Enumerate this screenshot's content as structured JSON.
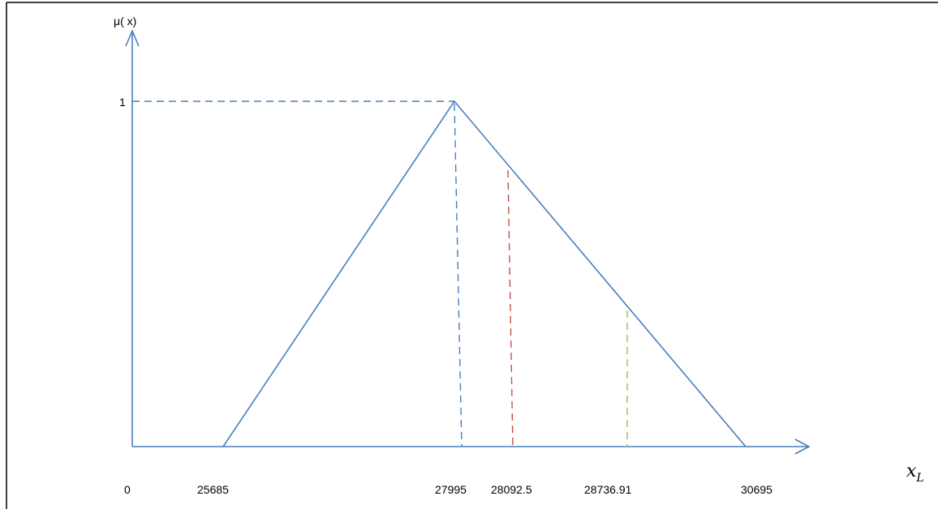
{
  "diagram": {
    "y_axis_label": "μ( x)",
    "x_axis_label": {
      "base": "x",
      "subscript": "L"
    },
    "y_peak_label": "1",
    "tick_labels": [
      "0",
      "25685",
      "27995",
      "28092.5",
      "28736.91",
      "30695"
    ],
    "membership": {
      "a": 25685,
      "b": 27995,
      "c": 30695,
      "peak": 1
    },
    "markers": [
      {
        "x": 27995,
        "color": "#4a7ebb"
      },
      {
        "x": 28092.5,
        "color": "#c0504d"
      },
      {
        "x": 28736.91,
        "color": "#9bbb59"
      }
    ],
    "colors": {
      "triangle": "#4a7ebb",
      "axes": "#4a7ebb",
      "frame": "#000000"
    }
  }
}
